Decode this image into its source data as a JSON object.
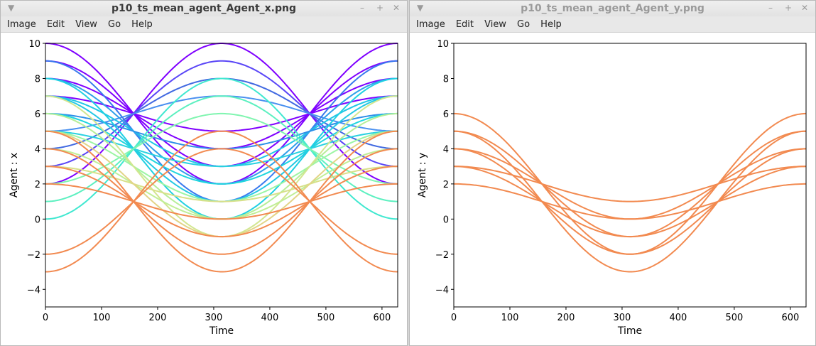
{
  "windows": [
    {
      "title": "p10_ts_mean_agent_Agent_x.png",
      "menu": [
        "Image",
        "Edit",
        "View",
        "Go",
        "Help"
      ],
      "chart_data": {
        "type": "line",
        "xlabel": "Time",
        "ylabel": "Agent : x",
        "xlim": [
          0,
          628
        ],
        "ylim": [
          -5,
          10
        ],
        "xticks": [
          0,
          100,
          200,
          300,
          400,
          500,
          600
        ],
        "yticks": [
          -4,
          -2,
          0,
          2,
          4,
          6,
          8,
          10
        ],
        "x_step": 628,
        "series": [
          {
            "center": 6,
            "amplitude": 4,
            "phase": 1,
            "color": "#7f00ff"
          },
          {
            "center": 6,
            "amplitude": 3,
            "phase": 1,
            "color": "#7f00ff"
          },
          {
            "center": 6,
            "amplitude": 2,
            "phase": 1,
            "color": "#7f00ff"
          },
          {
            "center": 6,
            "amplitude": 1,
            "phase": 1,
            "color": "#7f00ff"
          },
          {
            "center": 6,
            "amplitude": 4,
            "phase": 0,
            "color": "#7f00ff"
          },
          {
            "center": 6,
            "amplitude": 3,
            "phase": 0,
            "color": "#5a46f7"
          },
          {
            "center": 6,
            "amplitude": 2,
            "phase": 0,
            "color": "#4169e1"
          },
          {
            "center": 6,
            "amplitude": 1,
            "phase": 0,
            "color": "#4a90f0"
          },
          {
            "center": 5,
            "amplitude": 4,
            "phase": 1,
            "color": "#3a7aee"
          },
          {
            "center": 5,
            "amplitude": 3,
            "phase": 1,
            "color": "#2fa0ea"
          },
          {
            "center": 5,
            "amplitude": 2,
            "phase": 1,
            "color": "#1fc6e6"
          },
          {
            "center": 5,
            "amplitude": 1,
            "phase": 1,
            "color": "#2e8fe8"
          },
          {
            "center": 4,
            "amplitude": 4,
            "phase": 1,
            "color": "#1fd0e2"
          },
          {
            "center": 4,
            "amplitude": 3,
            "phase": 1,
            "color": "#25c9e4"
          },
          {
            "center": 4,
            "amplitude": 2,
            "phase": 1,
            "color": "#1fd6de"
          },
          {
            "center": 4,
            "amplitude": 1,
            "phase": 1,
            "color": "#2ad2e0"
          },
          {
            "center": 4,
            "amplitude": 4,
            "phase": 0,
            "color": "#40e8d0"
          },
          {
            "center": 4,
            "amplitude": 3,
            "phase": 0,
            "color": "#5cf0c0"
          },
          {
            "center": 4,
            "amplitude": 2,
            "phase": 0,
            "color": "#80f5b0"
          },
          {
            "center": 3,
            "amplitude": 2,
            "phase": 1,
            "color": "#9cf5a4"
          },
          {
            "center": 3,
            "amplitude": 3,
            "phase": 1,
            "color": "#b6ee98"
          },
          {
            "center": 3,
            "amplitude": 4,
            "phase": 1,
            "color": "#d2e690"
          },
          {
            "center": 2,
            "amplitude": 2,
            "phase": 1,
            "color": "#c0ee96"
          },
          {
            "center": 2,
            "amplitude": 1,
            "phase": 1,
            "color": "#d8e08a"
          },
          {
            "center": 2,
            "amplitude": 3,
            "phase": 1,
            "color": "#e2d486"
          },
          {
            "center": 1,
            "amplitude": 4,
            "phase": 1,
            "color": "#f28a50"
          },
          {
            "center": 1,
            "amplitude": 3,
            "phase": 1,
            "color": "#f28a50"
          },
          {
            "center": 1,
            "amplitude": 2,
            "phase": 1,
            "color": "#f28a50"
          },
          {
            "center": 1,
            "amplitude": 1,
            "phase": 1,
            "color": "#f28a50"
          },
          {
            "center": 1,
            "amplitude": 4,
            "phase": 0,
            "color": "#f28a50"
          },
          {
            "center": 1,
            "amplitude": 3,
            "phase": 0,
            "color": "#f28a50"
          }
        ]
      }
    },
    {
      "title": "p10_ts_mean_agent_Agent_y.png",
      "menu": [
        "Image",
        "Edit",
        "View",
        "Go",
        "Help"
      ],
      "chart_data": {
        "type": "line",
        "xlabel": "Time",
        "ylabel": "Agent : y",
        "xlim": [
          0,
          628
        ],
        "ylim": [
          -5,
          10
        ],
        "xticks": [
          0,
          100,
          200,
          300,
          400,
          500,
          600
        ],
        "yticks": [
          -4,
          -2,
          0,
          2,
          4,
          6,
          8,
          10
        ],
        "x_step": 628,
        "series": [
          {
            "center": 2,
            "amplitude": 4,
            "phase": 1,
            "color": "#f28a50"
          },
          {
            "center": 2,
            "amplitude": 3,
            "phase": 1,
            "color": "#f28a50"
          },
          {
            "center": 2,
            "amplitude": 2,
            "phase": 1,
            "color": "#f28a50"
          },
          {
            "center": 2,
            "amplitude": 1,
            "phase": 1,
            "color": "#f28a50"
          },
          {
            "center": 1,
            "amplitude": 4,
            "phase": 1,
            "color": "#f28a50"
          },
          {
            "center": 1,
            "amplitude": 3,
            "phase": 1,
            "color": "#f28a50"
          },
          {
            "center": 1,
            "amplitude": 2,
            "phase": 1,
            "color": "#f28a50"
          },
          {
            "center": 1,
            "amplitude": 1,
            "phase": 1,
            "color": "#f28a50"
          }
        ]
      }
    }
  ]
}
